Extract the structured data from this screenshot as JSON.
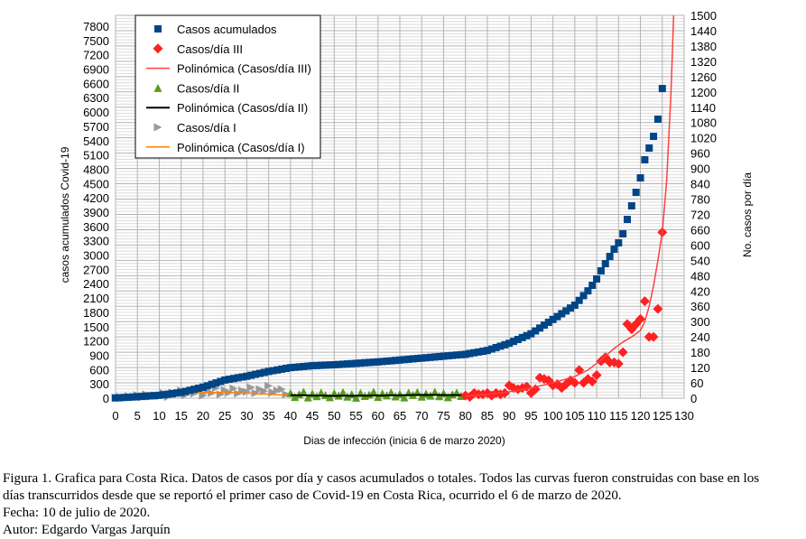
{
  "chart_data": {
    "type": "scatter",
    "xlabel": "Dias de infección (inicia 6 de marzo 2020)",
    "ylabel_left": "casos acumulados Covid-19",
    "ylabel_right": "No. casos por día",
    "xlim": [
      0,
      130
    ],
    "ylim_left": [
      0,
      7800
    ],
    "ylim_right": [
      0,
      1500
    ],
    "grid": true,
    "legend_position": "top-left",
    "x_ticks": [
      "0",
      "5",
      "10",
      "15",
      "20",
      "25",
      "30",
      "35",
      "40",
      "45",
      "50",
      "55",
      "60",
      "65",
      "70",
      "75",
      "80",
      "85",
      "90",
      "95",
      "100",
      "105",
      "110",
      "115",
      "120",
      "125",
      "130"
    ],
    "left_ticks": [
      "0",
      "300",
      "600",
      "900",
      "1200",
      "1500",
      "1800",
      "2100",
      "2400",
      "2700",
      "3000",
      "3300",
      "3600",
      "3900",
      "4200",
      "4500",
      "4800",
      "5100",
      "5400",
      "5700",
      "6000",
      "6300",
      "6600",
      "6900",
      "7200",
      "7500",
      "7800"
    ],
    "right_ticks": [
      "0",
      "60",
      "120",
      "180",
      "240",
      "300",
      "360",
      "420",
      "480",
      "540",
      "600",
      "660",
      "720",
      "780",
      "840",
      "900",
      "960",
      "1020",
      "1080",
      "1140",
      "1200",
      "1260",
      "1320",
      "1380",
      "1440",
      "1500"
    ],
    "series": [
      {
        "name": "Casos acumulados",
        "axis": "left",
        "marker": "square",
        "color": "#004586",
        "x_start": 0,
        "values": [
          5,
          10,
          15,
          20,
          25,
          30,
          36,
          42,
          48,
          54,
          60,
          72,
          84,
          96,
          108,
          120,
          142,
          164,
          186,
          208,
          230,
          260,
          290,
          320,
          350,
          380,
          396,
          412,
          428,
          444,
          460,
          480,
          500,
          520,
          540,
          560,
          576,
          592,
          608,
          624,
          640,
          648,
          656,
          664,
          672,
          680,
          684,
          688,
          692,
          696,
          700,
          706,
          712,
          718,
          724,
          730,
          736,
          742,
          748,
          754,
          760,
          768,
          776,
          784,
          792,
          800,
          808,
          816,
          824,
          832,
          840,
          848,
          856,
          864,
          872,
          880,
          888,
          896,
          904,
          912,
          920,
          936,
          952,
          968,
          984,
          1000,
          1030,
          1060,
          1090,
          1120,
          1150,
          1190,
          1230,
          1270,
          1310,
          1350,
          1410,
          1470,
          1530,
          1590,
          1650,
          1710,
          1770,
          1830,
          1890,
          1950,
          2050,
          2150,
          2250,
          2366,
          2499,
          2669,
          2820,
          2972,
          3123,
          3256,
          3445,
          3748,
          4032,
          4316,
          4619,
          4998,
          5244,
          5490,
          5850,
          6493
        ]
      },
      {
        "name": "Casos/día III",
        "axis": "right",
        "marker": "diamond",
        "color": "#ff2020",
        "x_start": 80,
        "values": [
          10,
          5,
          20,
          15,
          15,
          20,
          10,
          20,
          15,
          20,
          50,
          40,
          35,
          40,
          45,
          20,
          35,
          80,
          75,
          70,
          50,
          55,
          40,
          55,
          70,
          60,
          110,
          60,
          75,
          65,
          90,
          145,
          160,
          140,
          140,
          135,
          180,
          290,
          270,
          290,
          310,
          380,
          240,
          240,
          350,
          650
        ]
      },
      {
        "name": "Polinómica (Casos/día III)",
        "axis": "right",
        "type": "line",
        "color": "#ff4040",
        "points": [
          [
            80,
            8
          ],
          [
            85,
            15
          ],
          [
            90,
            25
          ],
          [
            95,
            40
          ],
          [
            100,
            60
          ],
          [
            105,
            85
          ],
          [
            108,
            110
          ],
          [
            111,
            150
          ],
          [
            114,
            195
          ],
          [
            116,
            220
          ],
          [
            118,
            240
          ],
          [
            120,
            265
          ],
          [
            121,
            300
          ],
          [
            122,
            360
          ],
          [
            123,
            440
          ],
          [
            124,
            540
          ],
          [
            125,
            650
          ],
          [
            126,
            850
          ],
          [
            127,
            1200
          ],
          [
            127.6,
            1500
          ]
        ]
      },
      {
        "name": "Casos/día II",
        "axis": "right",
        "marker": "triangle-up",
        "color": "#579d1c",
        "x_start": 40,
        "values": [
          20,
          5,
          15,
          25,
          3,
          18,
          8,
          22,
          12,
          4,
          20,
          10,
          24,
          6,
          16,
          2,
          21,
          9,
          14,
          25,
          5,
          19,
          11,
          23,
          7,
          17,
          3,
          22,
          13,
          24,
          6,
          18,
          10,
          25,
          8,
          20,
          4,
          15,
          22,
          9
        ]
      },
      {
        "name": "Polinómica (Casos/día II)",
        "axis": "right",
        "type": "line",
        "color": "#000000",
        "points": [
          [
            40,
            12
          ],
          [
            50,
            9
          ],
          [
            60,
            10
          ],
          [
            70,
            13
          ],
          [
            80,
            12
          ]
        ]
      },
      {
        "name": "Casos/día I",
        "axis": "right",
        "marker": "triangle-right",
        "color": "#999999",
        "x_start": 0,
        "values": [
          2,
          5,
          1,
          8,
          4,
          12,
          3,
          15,
          6,
          10,
          8,
          20,
          5,
          22,
          14,
          30,
          12,
          25,
          18,
          35,
          10,
          28,
          20,
          40,
          15,
          32,
          22,
          38,
          18,
          30,
          25,
          42,
          20,
          35,
          28,
          48,
          22,
          30,
          35,
          15
        ]
      },
      {
        "name": "Polinómica (Casos/día I)",
        "axis": "right",
        "type": "line",
        "color": "#ff8000",
        "points": [
          [
            0,
            2
          ],
          [
            5,
            8
          ],
          [
            10,
            14
          ],
          [
            15,
            19
          ],
          [
            20,
            22
          ],
          [
            25,
            22
          ],
          [
            30,
            20
          ],
          [
            35,
            16
          ],
          [
            40,
            10
          ]
        ]
      }
    ]
  },
  "caption": {
    "line1": "Figura 1. Grafica para Costa Rica. Datos de casos por día y casos acumulados o totales. Todos las curvas fueron construidas con base en los",
    "line2": "días transcurridos desde que se reportó el primer caso de Covid-19 en Costa Rica, ocurrido el 6 de marzo de 2020.",
    "line3": "Fecha: 10 de julio de 2020.",
    "line4": "Autor: Edgardo Vargas Jarquín"
  }
}
